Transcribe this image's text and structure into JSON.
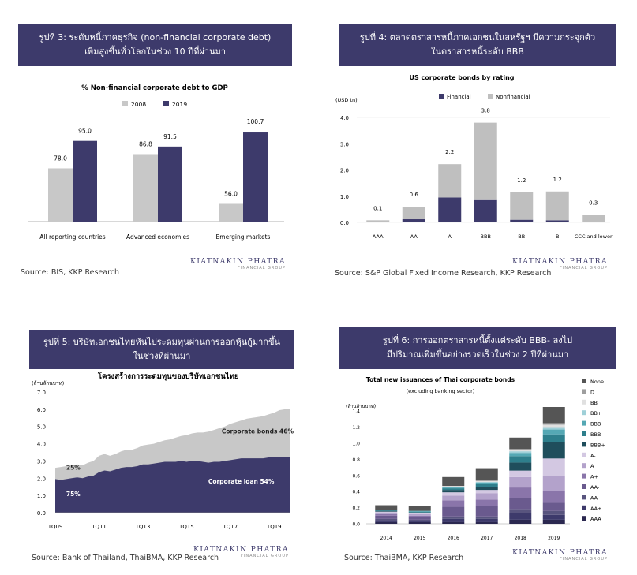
{
  "brand": {
    "name": "KIATNAKIN PHATRA",
    "sub": "FINANCIAL GROUP"
  },
  "colors": {
    "banner": "#3d3a6b",
    "dark": "#3d3a6b",
    "gray": "#bfbfbf",
    "lightgray": "#c8c8c8"
  },
  "panels": {
    "p1": {
      "banner": [
        "รูปที่ 3: ระดับหนี้ภาคธุรกิจ (non-financial corporate debt)",
        "เพิ่มสูงขึ้นทั่วโลกในช่วง 10 ปีที่ผ่านมา"
      ],
      "source": "Source: BIS, KKP Research"
    },
    "p2": {
      "banner": [
        "รูปที่ 4: ตลาดตราสารหนี้ภาคเอกชนในสหรัฐฯ มีความกระจุกตัว",
        "ในตราสารหนี้ระดับ BBB"
      ],
      "source": "Source: S&P Global Fixed Income Research, KKP Research"
    },
    "p3": {
      "banner": [
        "รูปที่ 5: บริษัทเอกชนไทยหันไประดมทุนผ่านการออกหุ้นกู้มากขึ้น",
        "ในช่วงที่ผ่านมา"
      ],
      "source": "Source: Bank of Thailand, ThaiBMA, KKP Research"
    },
    "p4": {
      "banner": [
        "รูปที่ 6: การออกตราสารหนี้ตั้งแต่ระดับ BBB- ลงไป",
        "มีปริมาณเพิ่มขึ้นอย่างรวดเร็วในช่วง 2 ปีที่ผ่านมา"
      ],
      "source": "Source: ThaiBMA, KKP Research"
    }
  },
  "chart_data": [
    {
      "type": "bar",
      "title": "% Non-financial corporate debt to GDP",
      "categories": [
        "All reporting countries",
        "Advanced economies",
        "Emerging markets"
      ],
      "series": [
        {
          "name": "2008",
          "values": [
            78.0,
            86.8,
            56.0
          ],
          "labels": [
            "78.0",
            "86.8",
            "56.0"
          ],
          "color": "#c8c8c8"
        },
        {
          "name": "2019",
          "values": [
            95.0,
            91.5,
            100.7
          ],
          "labels": [
            "95.0",
            "91.5",
            "100.7"
          ],
          "color": "#3d3a6b"
        }
      ],
      "ylim": [
        45,
        110
      ],
      "legend": "top"
    },
    {
      "type": "bar",
      "stacked": true,
      "title": "US corporate bonds by rating",
      "ylabel": "(USD tn)",
      "categories": [
        "AAA",
        "AA",
        "A",
        "BBB",
        "BB",
        "B",
        "CCC and lower"
      ],
      "series": [
        {
          "name": "Financial",
          "values": [
            0.0,
            0.12,
            0.95,
            0.88,
            0.1,
            0.08,
            0.0
          ],
          "color": "#3d3a6b"
        },
        {
          "name": "Nonfinancial",
          "values": [
            0.08,
            0.48,
            1.27,
            2.92,
            1.05,
            1.1,
            0.28
          ],
          "color": "#bfbfbf"
        }
      ],
      "totals": [
        "0.1",
        "0.6",
        "2.2",
        "3.8",
        "1.2",
        "1.2",
        "0.3"
      ],
      "yticks": [
        "0.0",
        "1.0",
        "2.0",
        "3.0",
        "4.0"
      ],
      "ylim": [
        0,
        4
      ],
      "legend": "top"
    },
    {
      "type": "area",
      "stacked": true,
      "title": "โครงสร้างการระดมทุนของบริษัทเอกชนไทย",
      "ylabel": "(ล้านล้านบาท)",
      "x_ticks": [
        "1Q09",
        "1Q11",
        "1Q13",
        "1Q15",
        "1Q17",
        "1Q19"
      ],
      "yticks": [
        "0.0",
        "1.0",
        "2.0",
        "3.0",
        "4.0",
        "5.0",
        "6.0",
        "7.0"
      ],
      "ylim": [
        0,
        7
      ],
      "x": [
        "1Q09",
        "2Q09",
        "3Q09",
        "4Q09",
        "1Q10",
        "2Q10",
        "3Q10",
        "4Q10",
        "1Q11",
        "2Q11",
        "3Q11",
        "4Q11",
        "1Q12",
        "2Q12",
        "3Q12",
        "4Q12",
        "1Q13",
        "2Q13",
        "3Q13",
        "4Q13",
        "1Q14",
        "2Q14",
        "3Q14",
        "4Q14",
        "1Q15",
        "2Q15",
        "3Q15",
        "4Q15",
        "1Q16",
        "2Q16",
        "3Q16",
        "4Q16",
        "1Q17",
        "2Q17",
        "3Q17",
        "4Q17",
        "1Q18",
        "2Q18",
        "3Q18",
        "4Q18",
        "1Q19",
        "2Q19",
        "3Q19",
        "4Q19"
      ],
      "series": [
        {
          "name": "Corporate loan",
          "color": "#3d3a6b",
          "values": [
            1.95,
            1.9,
            1.95,
            2.0,
            2.05,
            2.0,
            2.1,
            2.15,
            2.35,
            2.45,
            2.4,
            2.5,
            2.6,
            2.65,
            2.65,
            2.7,
            2.8,
            2.8,
            2.85,
            2.9,
            2.95,
            2.95,
            2.95,
            3.0,
            2.95,
            3.0,
            3.0,
            2.95,
            2.9,
            2.95,
            2.95,
            3.0,
            3.05,
            3.1,
            3.15,
            3.15,
            3.15,
            3.15,
            3.15,
            3.2,
            3.2,
            3.25,
            3.25,
            3.2
          ]
        },
        {
          "name": "Corporate bonds",
          "color": "#c8c8c8",
          "values": [
            0.65,
            0.75,
            0.75,
            0.75,
            0.75,
            0.75,
            0.8,
            0.85,
            0.95,
            0.95,
            0.9,
            0.9,
            0.95,
            1.0,
            1.0,
            1.05,
            1.1,
            1.15,
            1.15,
            1.2,
            1.25,
            1.3,
            1.4,
            1.45,
            1.55,
            1.6,
            1.65,
            1.7,
            1.8,
            1.85,
            1.95,
            2.0,
            2.1,
            2.15,
            2.2,
            2.3,
            2.35,
            2.4,
            2.45,
            2.5,
            2.6,
            2.7,
            2.75,
            2.8
          ]
        }
      ],
      "annotations": [
        {
          "text": "Corporate bonds 46%",
          "x": "2Q18",
          "y": 4.6
        },
        {
          "text": "Corporate loan 54%",
          "x": "3Q17",
          "y": 1.7
        },
        {
          "text": "25%",
          "x": "3Q09",
          "y": 2.5
        },
        {
          "text": "75%",
          "x": "3Q09",
          "y": 0.95
        }
      ]
    },
    {
      "type": "bar",
      "stacked": true,
      "title": "Total new issuances of Thai corporate bonds",
      "subtitle": "(excluding banking sector)",
      "ylabel": "(ล้านล้านบาท)",
      "categories": [
        "2014",
        "2015",
        "2016",
        "2017",
        "2018",
        "2019"
      ],
      "yticks": [
        "0.0",
        "0.2",
        "0.4",
        "0.6",
        "0.8",
        "1.0",
        "1.2",
        "1.4"
      ],
      "ylim": [
        0,
        1.45
      ],
      "series": [
        {
          "name": "AAA",
          "color": "#2b2850",
          "values": [
            0.02,
            0.02,
            0.02,
            0.02,
            0.05,
            0.05
          ]
        },
        {
          "name": "AA+",
          "color": "#3d3a6b",
          "values": [
            0.01,
            0.01,
            0.04,
            0.04,
            0.08,
            0.06
          ]
        },
        {
          "name": "AA",
          "color": "#58547e",
          "values": [
            0.03,
            0.02,
            0.03,
            0.03,
            0.05,
            0.05
          ]
        },
        {
          "name": "AA-",
          "color": "#6a5a8e",
          "values": [
            0.04,
            0.03,
            0.12,
            0.13,
            0.14,
            0.1
          ]
        },
        {
          "name": "A+",
          "color": "#8a75aa",
          "values": [
            0.02,
            0.02,
            0.08,
            0.08,
            0.13,
            0.15
          ]
        },
        {
          "name": "A",
          "color": "#b3a2cb",
          "values": [
            0.02,
            0.02,
            0.06,
            0.08,
            0.13,
            0.18
          ]
        },
        {
          "name": "A-",
          "color": "#d3c8e2",
          "values": [
            0.01,
            0.01,
            0.04,
            0.04,
            0.08,
            0.22
          ]
        },
        {
          "name": "BBB+",
          "color": "#1f4e5c",
          "values": [
            0.01,
            0.01,
            0.03,
            0.04,
            0.1,
            0.2
          ]
        },
        {
          "name": "BBB",
          "color": "#2e7f8c",
          "values": [
            0.01,
            0.01,
            0.02,
            0.03,
            0.08,
            0.1
          ]
        },
        {
          "name": "BBB-",
          "color": "#55a8b4",
          "values": [
            0.0,
            0.01,
            0.01,
            0.02,
            0.04,
            0.06
          ]
        },
        {
          "name": "BB+",
          "color": "#9fd0d8",
          "values": [
            0.0,
            0.0,
            0.01,
            0.01,
            0.02,
            0.03
          ]
        },
        {
          "name": "BB",
          "color": "#e0e0e0",
          "values": [
            0.0,
            0.0,
            0.01,
            0.01,
            0.02,
            0.03
          ]
        },
        {
          "name": "D",
          "color": "#9e9e9e",
          "values": [
            0.0,
            0.0,
            0.0,
            0.01,
            0.01,
            0.02
          ]
        },
        {
          "name": "None",
          "color": "#555555",
          "values": [
            0.06,
            0.06,
            0.11,
            0.15,
            0.14,
            0.2
          ]
        }
      ],
      "legend": "right"
    }
  ]
}
